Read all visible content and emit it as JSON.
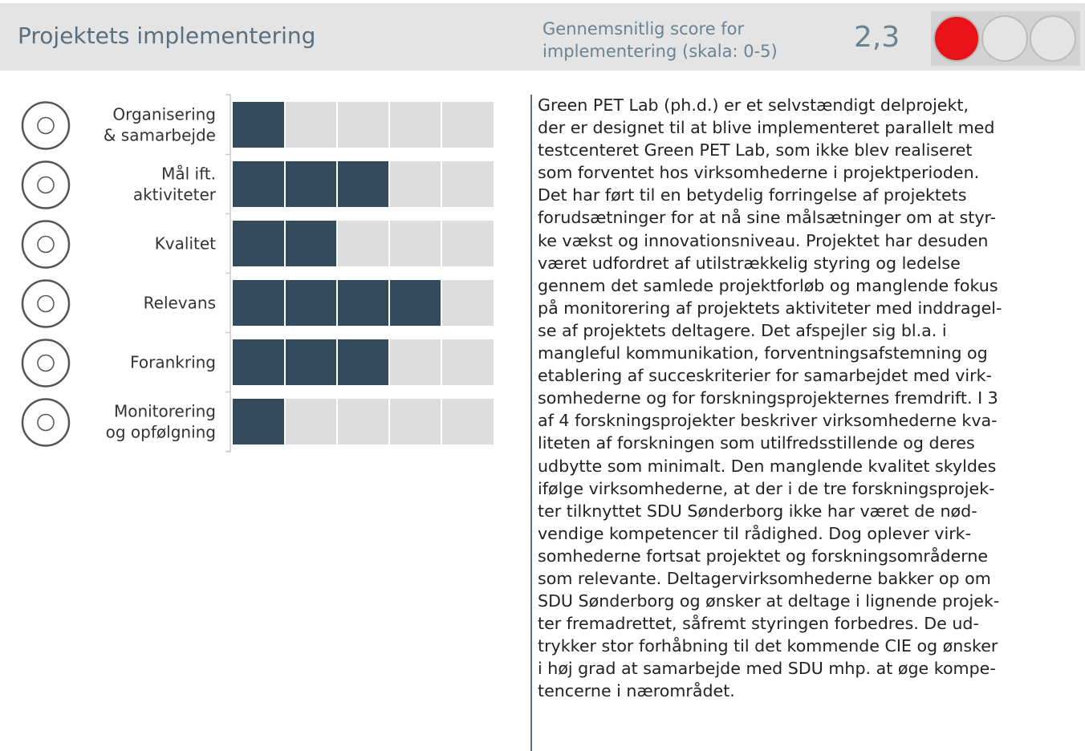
{
  "header": {
    "title": "Projektets implementering",
    "score_label": [
      "Gennemsnitlig score for",
      "implementering (skala: 0-5)"
    ],
    "score": "2,3"
  },
  "chart_data": {
    "type": "bar",
    "orientation": "horizontal",
    "categories": [
      [
        "Organisering",
        "& samarbejde"
      ],
      [
        "Mål ift.",
        "aktiviteter"
      ],
      [
        "Kvalitet"
      ],
      [
        "Relevans"
      ],
      [
        "Forankring"
      ],
      [
        "Monitorering",
        "og opfølgning"
      ]
    ],
    "values": [
      1,
      3,
      2,
      4,
      3,
      1
    ],
    "xlim": [
      0,
      5
    ],
    "color": "#344b5e",
    "background_color": "#dddddd"
  },
  "text": {
    "lines": [
      "Green PET Lab (ph.d.) er et selvstændigt delprojekt,",
      "der er designet til at blive implementeret parallelt med",
      "testcenteret Green PET Lab, som ikke blev realiseret",
      "som forventet hos virksomhederne i projektperioden.",
      "Det har ført til en betydelig forringelse af projektets",
      "forudsætninger for at nå sine målsætninger om at styr-",
      "ke vækst og innovationsniveau. Projektet har desuden",
      "været udfordret af utilstrækkelig styring og ledelse",
      "gennem det samlede projektforløb og manglende fokus",
      "på monitorering af projektets aktiviteter med inddragel-",
      "se af projektets deltagere. Det afspejler sig bl.a. i",
      "mangleful kommunikation, forventningsafstemning og",
      "etablering af succeskriterier for samarbejdet med virk-",
      "somhederne og for forskningsprojekternes fremdrift. I 3",
      "af 4 forskningsprojekter beskriver virksomhederne kva-",
      "liteten af forskningen som utilfredsstillende og deres",
      "udbytte som minimalt. Den manglende kvalitet skyldes",
      "ifølge virksomhederne, at der i de tre forskningsprojek-",
      "ter tilknyttet SDU Sønderborg ikke har været de nød-",
      "vendige kompetencer til rådighed. Dog oplever virk-",
      "somhederne fortsat projektet og forskningsområderne",
      "som relevante. Deltagervirksomhederne bakker op om",
      "SDU Sønderborg og ønsker at deltage i lignende projek-",
      "ter fremadrettet, såfremt styringen forbedres. De ud-",
      "trykker stor forhåbning til det kommende CIE og ønsker",
      "i høj grad at samarbejde med SDU mhp. at øge kompe-",
      "tencerne i nærområdet."
    ]
  }
}
